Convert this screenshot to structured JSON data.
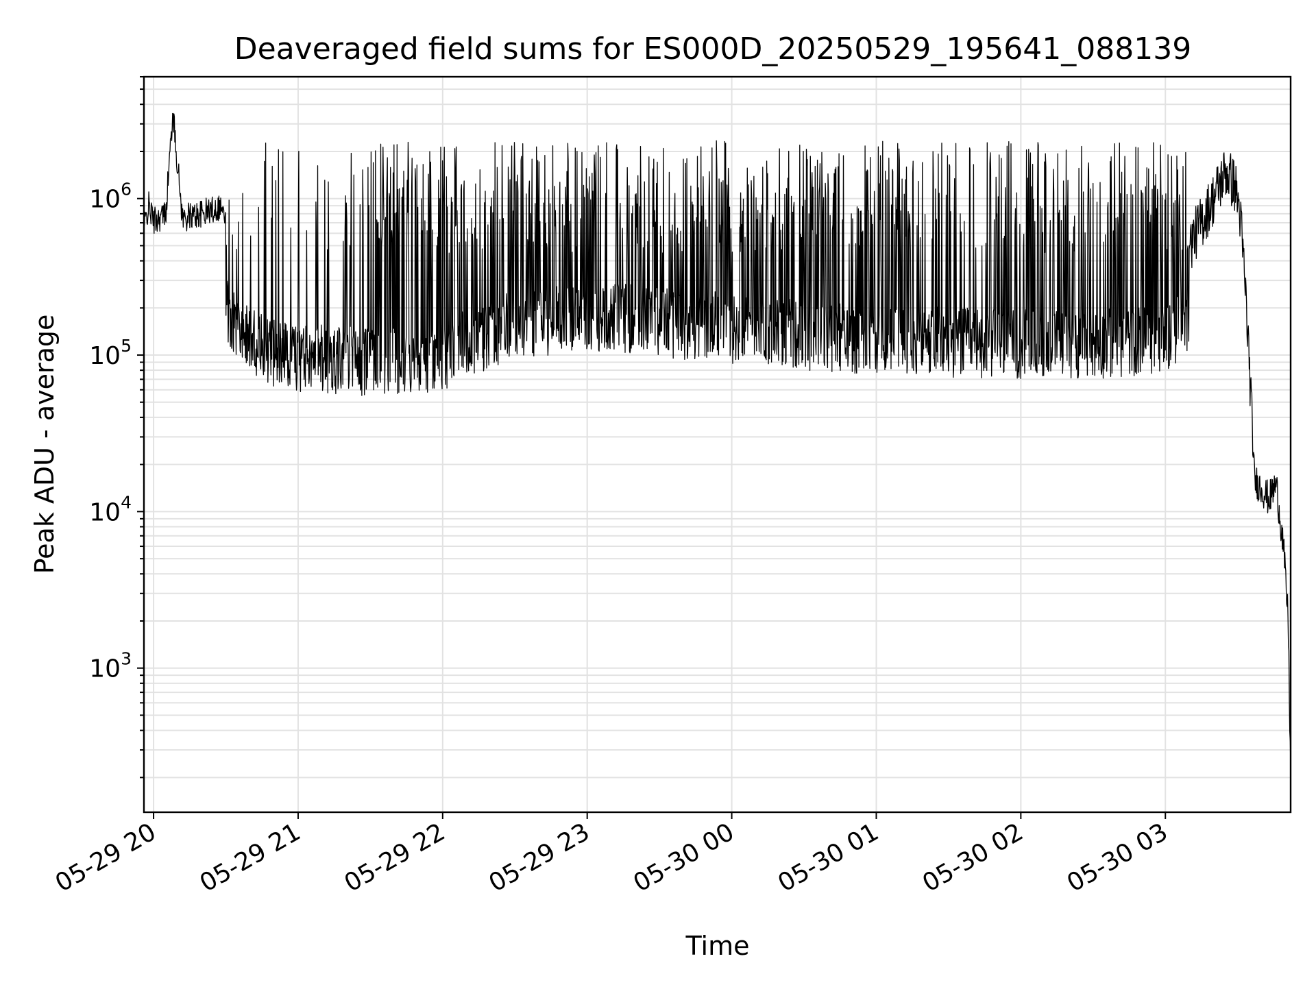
{
  "chart_data": {
    "type": "line",
    "title": "Deaveraged field sums for ES000D_20250529_195641_088139",
    "xlabel": "Time",
    "ylabel": "Peak ADU - average",
    "x_axis": {
      "type": "time",
      "range": [
        "2025-05-29 19:56",
        "2025-05-30 03:52"
      ],
      "tick_labels": [
        "05-29 20",
        "05-29 21",
        "05-29 22",
        "05-29 23",
        "05-30 00",
        "05-30 01",
        "05-30 02",
        "05-30 03"
      ]
    },
    "y_axis": {
      "scale": "log",
      "range": [
        120,
        6000000
      ],
      "tick_labels": [
        {
          "base": "10",
          "exp": "3"
        },
        {
          "base": "10",
          "exp": "4"
        },
        {
          "base": "10",
          "exp": "5"
        },
        {
          "base": "10",
          "exp": "6"
        }
      ]
    },
    "grid": true,
    "legend": "none",
    "series_color": "#000000",
    "series": [
      {
        "points": [
          [
            "2025-05-29 19:56",
            650000
          ],
          [
            "2025-05-29 19:58",
            900000
          ],
          [
            "2025-05-29 20:00",
            720000
          ],
          [
            "2025-05-29 20:05",
            800000
          ],
          [
            "2025-05-29 20:08",
            3500000
          ],
          [
            "2025-05-29 20:12",
            750000
          ],
          [
            "2025-05-29 20:20",
            800000
          ],
          [
            "2025-05-29 20:28",
            900000
          ],
          [
            "2025-05-29 20:33",
            500000
          ],
          [
            "2025-05-29 20:36",
            350000
          ],
          [
            "2025-05-29 20:39",
            250000
          ],
          [
            "2025-05-29 20:42",
            180000
          ],
          [
            "2025-05-29 20:45",
            130000
          ],
          [
            "2025-05-29 20:50",
            110000
          ],
          [
            "2025-05-29 20:55",
            95000
          ],
          [
            "2025-05-29 21:00",
            90000
          ],
          [
            "2025-05-29 21:10",
            80000
          ],
          [
            "2025-05-29 21:20",
            75000
          ],
          [
            "2025-05-29 21:30",
            72000
          ],
          [
            "2025-05-29 21:40",
            75000
          ],
          [
            "2025-05-29 21:50",
            80000
          ],
          [
            "2025-05-29 22:00",
            90000
          ],
          [
            "2025-05-29 22:20",
            250000
          ],
          [
            "2025-05-29 22:40",
            400000
          ],
          [
            "2025-05-29 23:00",
            500000
          ],
          [
            "2025-05-29 23:20",
            450000
          ],
          [
            "2025-05-29 23:40",
            350000
          ],
          [
            "2025-05-30 00:00",
            300000
          ],
          [
            "2025-05-30 00:20",
            250000
          ],
          [
            "2025-05-30 00:40",
            200000
          ],
          [
            "2025-05-30 01:00",
            180000
          ],
          [
            "2025-05-30 01:20",
            170000
          ],
          [
            "2025-05-30 01:40",
            160000
          ],
          [
            "2025-05-30 02:00",
            150000
          ],
          [
            "2025-05-30 02:20",
            150000
          ],
          [
            "2025-05-30 02:40",
            160000
          ],
          [
            "2025-05-30 03:00",
            200000
          ],
          [
            "2025-05-30 03:10",
            500000
          ],
          [
            "2025-05-30 03:20",
            1000000
          ],
          [
            "2025-05-30 03:25",
            1500000
          ],
          [
            "2025-05-30 03:29",
            1200000
          ],
          [
            "2025-05-30 03:31",
            800000
          ],
          [
            "2025-05-30 03:33",
            300000
          ],
          [
            "2025-05-30 03:35",
            80000
          ],
          [
            "2025-05-30 03:37",
            16000
          ],
          [
            "2025-05-30 03:40",
            14000
          ],
          [
            "2025-05-30 03:43",
            12000
          ],
          [
            "2025-05-30 03:46",
            15000
          ],
          [
            "2025-05-30 03:49",
            6000
          ],
          [
            "2025-05-30 03:51",
            2000
          ],
          [
            "2025-05-30 03:52",
            200
          ]
        ]
      }
    ]
  }
}
